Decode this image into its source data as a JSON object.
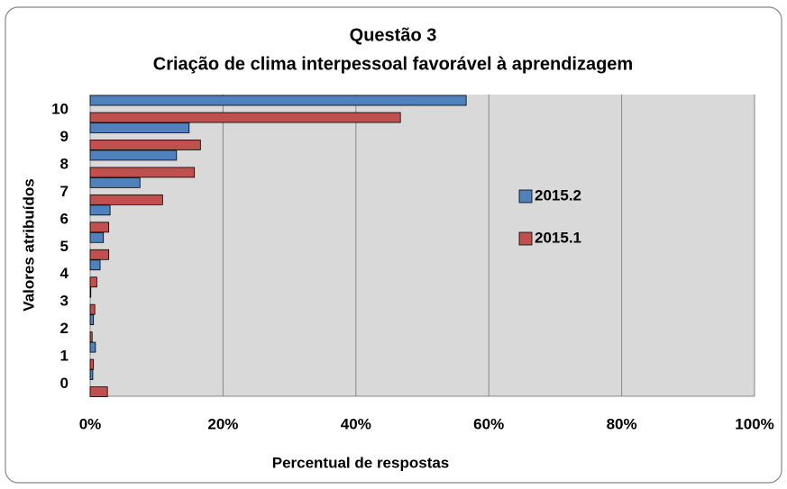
{
  "chart_data": {
    "type": "hbar",
    "title": "Questão 3",
    "subtitle": "Criação de clima interpessoal favorável à aprendizagem",
    "x_label": "Percentual de respostas",
    "y_label": "Valores atribuídos",
    "categories": [
      "0",
      "1",
      "2",
      "3",
      "4",
      "5",
      "6",
      "7",
      "8",
      "9",
      "10"
    ],
    "series": [
      {
        "name": "2015.2",
        "color": "#4f81bd",
        "values": [
          0.4,
          0.8,
          0.5,
          0.1,
          1.5,
          2.0,
          3.0,
          7.5,
          13.0,
          14.9,
          56.6
        ]
      },
      {
        "name": "2015.1",
        "color": "#c0504d",
        "values": [
          2.6,
          0.5,
          0.3,
          0.7,
          1.0,
          2.8,
          2.8,
          10.9,
          15.7,
          16.6,
          46.7
        ]
      }
    ],
    "xlim": [
      0,
      100
    ],
    "xticks": [
      {
        "value": 0,
        "label": "0%"
      },
      {
        "value": 20,
        "label": "20%"
      },
      {
        "value": 40,
        "label": "40%"
      },
      {
        "value": 60,
        "label": "60%"
      },
      {
        "value": 80,
        "label": "80%"
      },
      {
        "value": 100,
        "label": "100%"
      }
    ],
    "grid": true,
    "plot_background": "#d9d9d9"
  }
}
